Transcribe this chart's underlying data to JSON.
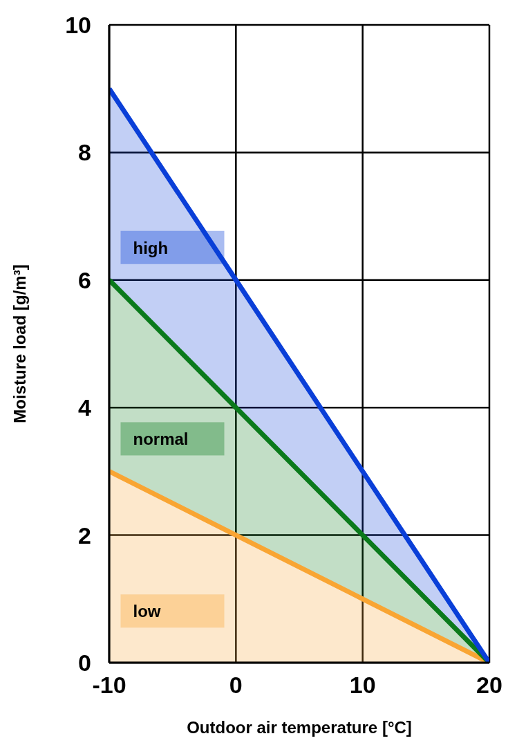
{
  "chart_data": {
    "type": "area",
    "xlabel": "Outdoor air temperature [°C]",
    "ylabel": "Moisture load [g/m³]",
    "x": [
      -10,
      0,
      10,
      20
    ],
    "series": [
      {
        "name": "low",
        "color": "#f9a533",
        "values": [
          3,
          2,
          1,
          0
        ]
      },
      {
        "name": "normal",
        "color": "#0b7a1c",
        "values": [
          6,
          4,
          2,
          0
        ]
      },
      {
        "name": "high",
        "color": "#0a3fd8",
        "values": [
          9,
          6,
          3,
          0
        ]
      }
    ],
    "xlim": [
      -10,
      20
    ],
    "xticks": [
      -10,
      0,
      10,
      20
    ],
    "ylim": [
      0,
      10
    ],
    "yticks": [
      0,
      2,
      4,
      6,
      8,
      10
    ],
    "grid": true,
    "marker": "none",
    "line_style": "solid"
  }
}
